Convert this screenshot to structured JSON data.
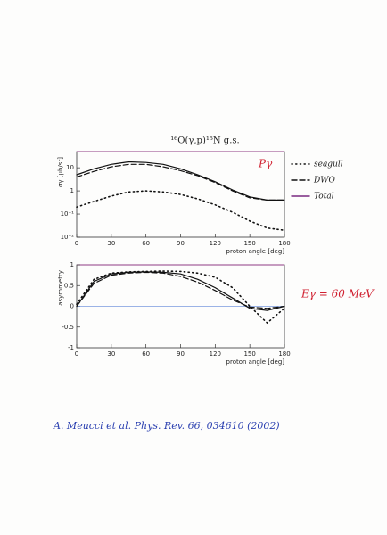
{
  "chart_data": [
    {
      "type": "line",
      "title": "¹⁶O(γ,p)¹⁵N g.s.",
      "xlabel": "proton angle [deg]",
      "ylabel": "σγ [μb/sr]",
      "log_y": true,
      "annotation": "Pγ",
      "legend": "right",
      "x": [
        0,
        15,
        30,
        45,
        60,
        75,
        90,
        105,
        120,
        135,
        150,
        165,
        180
      ],
      "xlim": [
        0,
        180
      ],
      "xticks": [
        0,
        30,
        60,
        90,
        120,
        150,
        180
      ],
      "ylim": [
        0.01,
        50
      ],
      "yticks": [
        {
          "value": 0.01,
          "label": "10⁻²"
        },
        {
          "value": 0.1,
          "label": "10⁻¹"
        },
        1,
        10
      ],
      "series": [
        {
          "name": "seagull",
          "color": "#111111",
          "dash": "dotted",
          "values": [
            0.2,
            0.35,
            0.6,
            0.9,
            1.0,
            0.9,
            0.7,
            0.45,
            0.25,
            0.12,
            0.05,
            0.025,
            0.02
          ]
        },
        {
          "name": "DWO",
          "color": "#111111",
          "dash": "dashed",
          "values": [
            4,
            7,
            11,
            14,
            14,
            11,
            7.5,
            4.5,
            2.3,
            1.0,
            0.5,
            0.4,
            0.4
          ]
        },
        {
          "name": "Total",
          "color": "#111111",
          "dash": "solid",
          "values": [
            5,
            9,
            14,
            18,
            17,
            14,
            9,
            5,
            2.5,
            1.1,
            0.55,
            0.4,
            0.4
          ]
        }
      ]
    },
    {
      "type": "line",
      "xlabel": "proton angle [deg]",
      "ylabel": "asymmetry",
      "log_y": false,
      "annotation": "Eγ = 60 MeV",
      "x": [
        0,
        15,
        30,
        45,
        60,
        75,
        90,
        105,
        120,
        135,
        150,
        165,
        180
      ],
      "xlim": [
        0,
        180
      ],
      "xticks": [
        0,
        30,
        60,
        90,
        120,
        150,
        180
      ],
      "ylim": [
        -1,
        1
      ],
      "yticks": [
        -1,
        -0.5,
        0,
        0.5,
        1
      ],
      "series": [
        {
          "color": "#111111",
          "dash": "dotted",
          "values": [
            0.05,
            0.65,
            0.8,
            0.83,
            0.84,
            0.85,
            0.84,
            0.8,
            0.7,
            0.45,
            0.0,
            -0.4,
            -0.05
          ]
        },
        {
          "color": "#111111",
          "dash": "dashed",
          "values": [
            0,
            0.55,
            0.75,
            0.8,
            0.82,
            0.8,
            0.72,
            0.58,
            0.38,
            0.15,
            -0.02,
            -0.05,
            0
          ]
        },
        {
          "color": "#111111",
          "dash": "solid",
          "values": [
            0,
            0.6,
            0.78,
            0.82,
            0.83,
            0.82,
            0.78,
            0.65,
            0.45,
            0.2,
            -0.05,
            -0.1,
            0
          ]
        }
      ]
    }
  ],
  "citation": "A. Meucci et al.   Phys. Rev. 66, 034610 (2002)"
}
